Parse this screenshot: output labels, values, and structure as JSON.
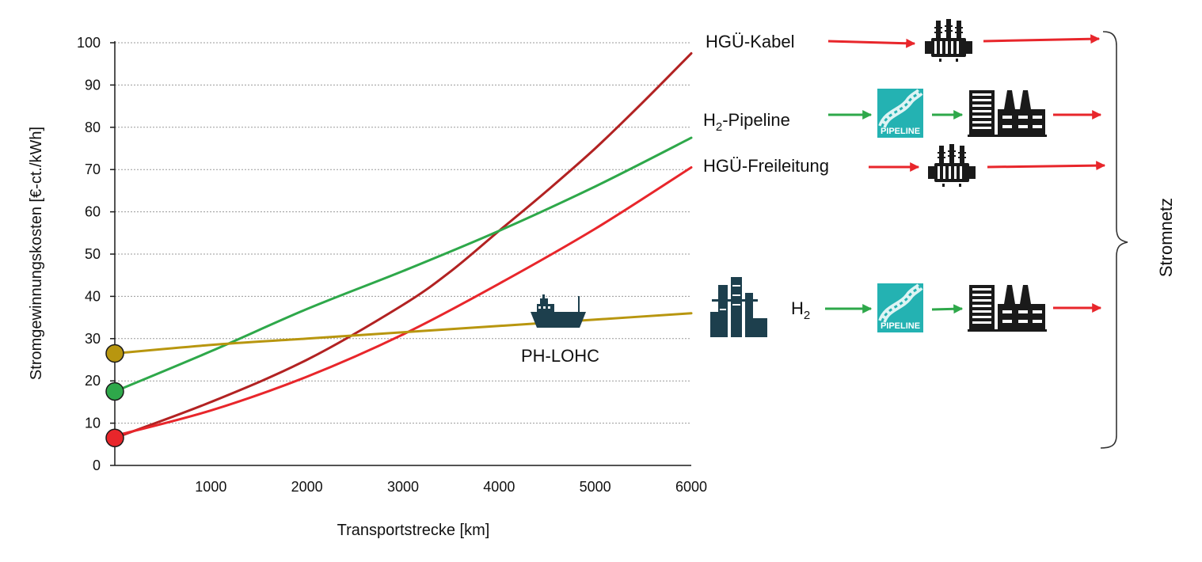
{
  "chart_data": {
    "type": "line",
    "xlabel": "Transportstrecke [km]",
    "ylabel": "Stromgewinnungskosten [€-ct./kWh]",
    "xlim": [
      0,
      6000
    ],
    "ylim": [
      0,
      100
    ],
    "x_ticks": [
      "1000",
      "2000",
      "3000",
      "4000",
      "5000",
      "6000"
    ],
    "y_ticks": [
      "0",
      "10",
      "20",
      "30",
      "40",
      "50",
      "60",
      "70",
      "80",
      "90",
      "100"
    ],
    "grid": "horizontal dotted",
    "series": [
      {
        "color": "#b22222",
        "points": [
          [
            0,
            6.5
          ],
          [
            1000,
            15
          ],
          [
            2000,
            25
          ],
          [
            3000,
            38
          ],
          [
            3500,
            46
          ],
          [
            4000,
            55.5
          ],
          [
            4500,
            65
          ],
          [
            5000,
            75
          ],
          [
            5500,
            86
          ],
          [
            6000,
            97.5
          ]
        ]
      },
      {
        "color": "#e8262b",
        "points": [
          [
            0,
            7
          ],
          [
            1000,
            13
          ],
          [
            2000,
            21
          ],
          [
            3000,
            31
          ],
          [
            4000,
            43
          ],
          [
            5000,
            56
          ],
          [
            6000,
            70.5
          ]
        ]
      },
      {
        "color": "#2ea84a",
        "points": [
          [
            0,
            17.5
          ],
          [
            1000,
            27
          ],
          [
            2000,
            37
          ],
          [
            3000,
            46
          ],
          [
            4000,
            55.5
          ],
          [
            5000,
            66
          ],
          [
            6000,
            77.5
          ]
        ]
      },
      {
        "color": "#b8960f",
        "points": [
          [
            0,
            26.5
          ],
          [
            1000,
            28.5
          ],
          [
            2000,
            30
          ],
          [
            3000,
            31.5
          ],
          [
            4000,
            33
          ],
          [
            5000,
            34.5
          ],
          [
            6000,
            36
          ]
        ]
      }
    ],
    "start_markers": [
      {
        "y": 26.5,
        "color": "#b8960f"
      },
      {
        "y": 17.5,
        "color": "#2ea84a"
      },
      {
        "y": 6.5,
        "color": "#e8262b"
      }
    ],
    "annotations": [
      {
        "text": "PH-LOHC",
        "icon": "ship-icon"
      }
    ]
  },
  "routes": [
    {
      "label": "HGÜ-Kabel",
      "icons": [
        "transformer-icon"
      ],
      "arrow_color": "#e8262b"
    },
    {
      "label_main": "H",
      "label_sub": "2",
      "label_rest": "-Pipeline",
      "icons": [
        "pipeline-icon",
        "power-plant-icon"
      ],
      "arrow_color": "#2ea84a",
      "final_arrow_color": "#e8262b"
    },
    {
      "label": "HGÜ-Freileitung",
      "icons": [
        "transformer-icon"
      ],
      "arrow_color": "#e8262b"
    },
    {
      "label_main": "H",
      "label_sub": "2",
      "icons": [
        "refinery-icon",
        "pipeline-icon",
        "power-plant-icon"
      ],
      "arrow_color": "#2ea84a",
      "final_arrow_color": "#e8262b"
    }
  ],
  "pipeline_text": "PIPELINE",
  "brace_label": "Stromnetz",
  "colors": {
    "red": "#e8262b",
    "darkred": "#b22222",
    "green": "#2ea84a",
    "gold": "#b8960f",
    "teal": "#1d3f4d",
    "cyan": "#24b2b2"
  }
}
